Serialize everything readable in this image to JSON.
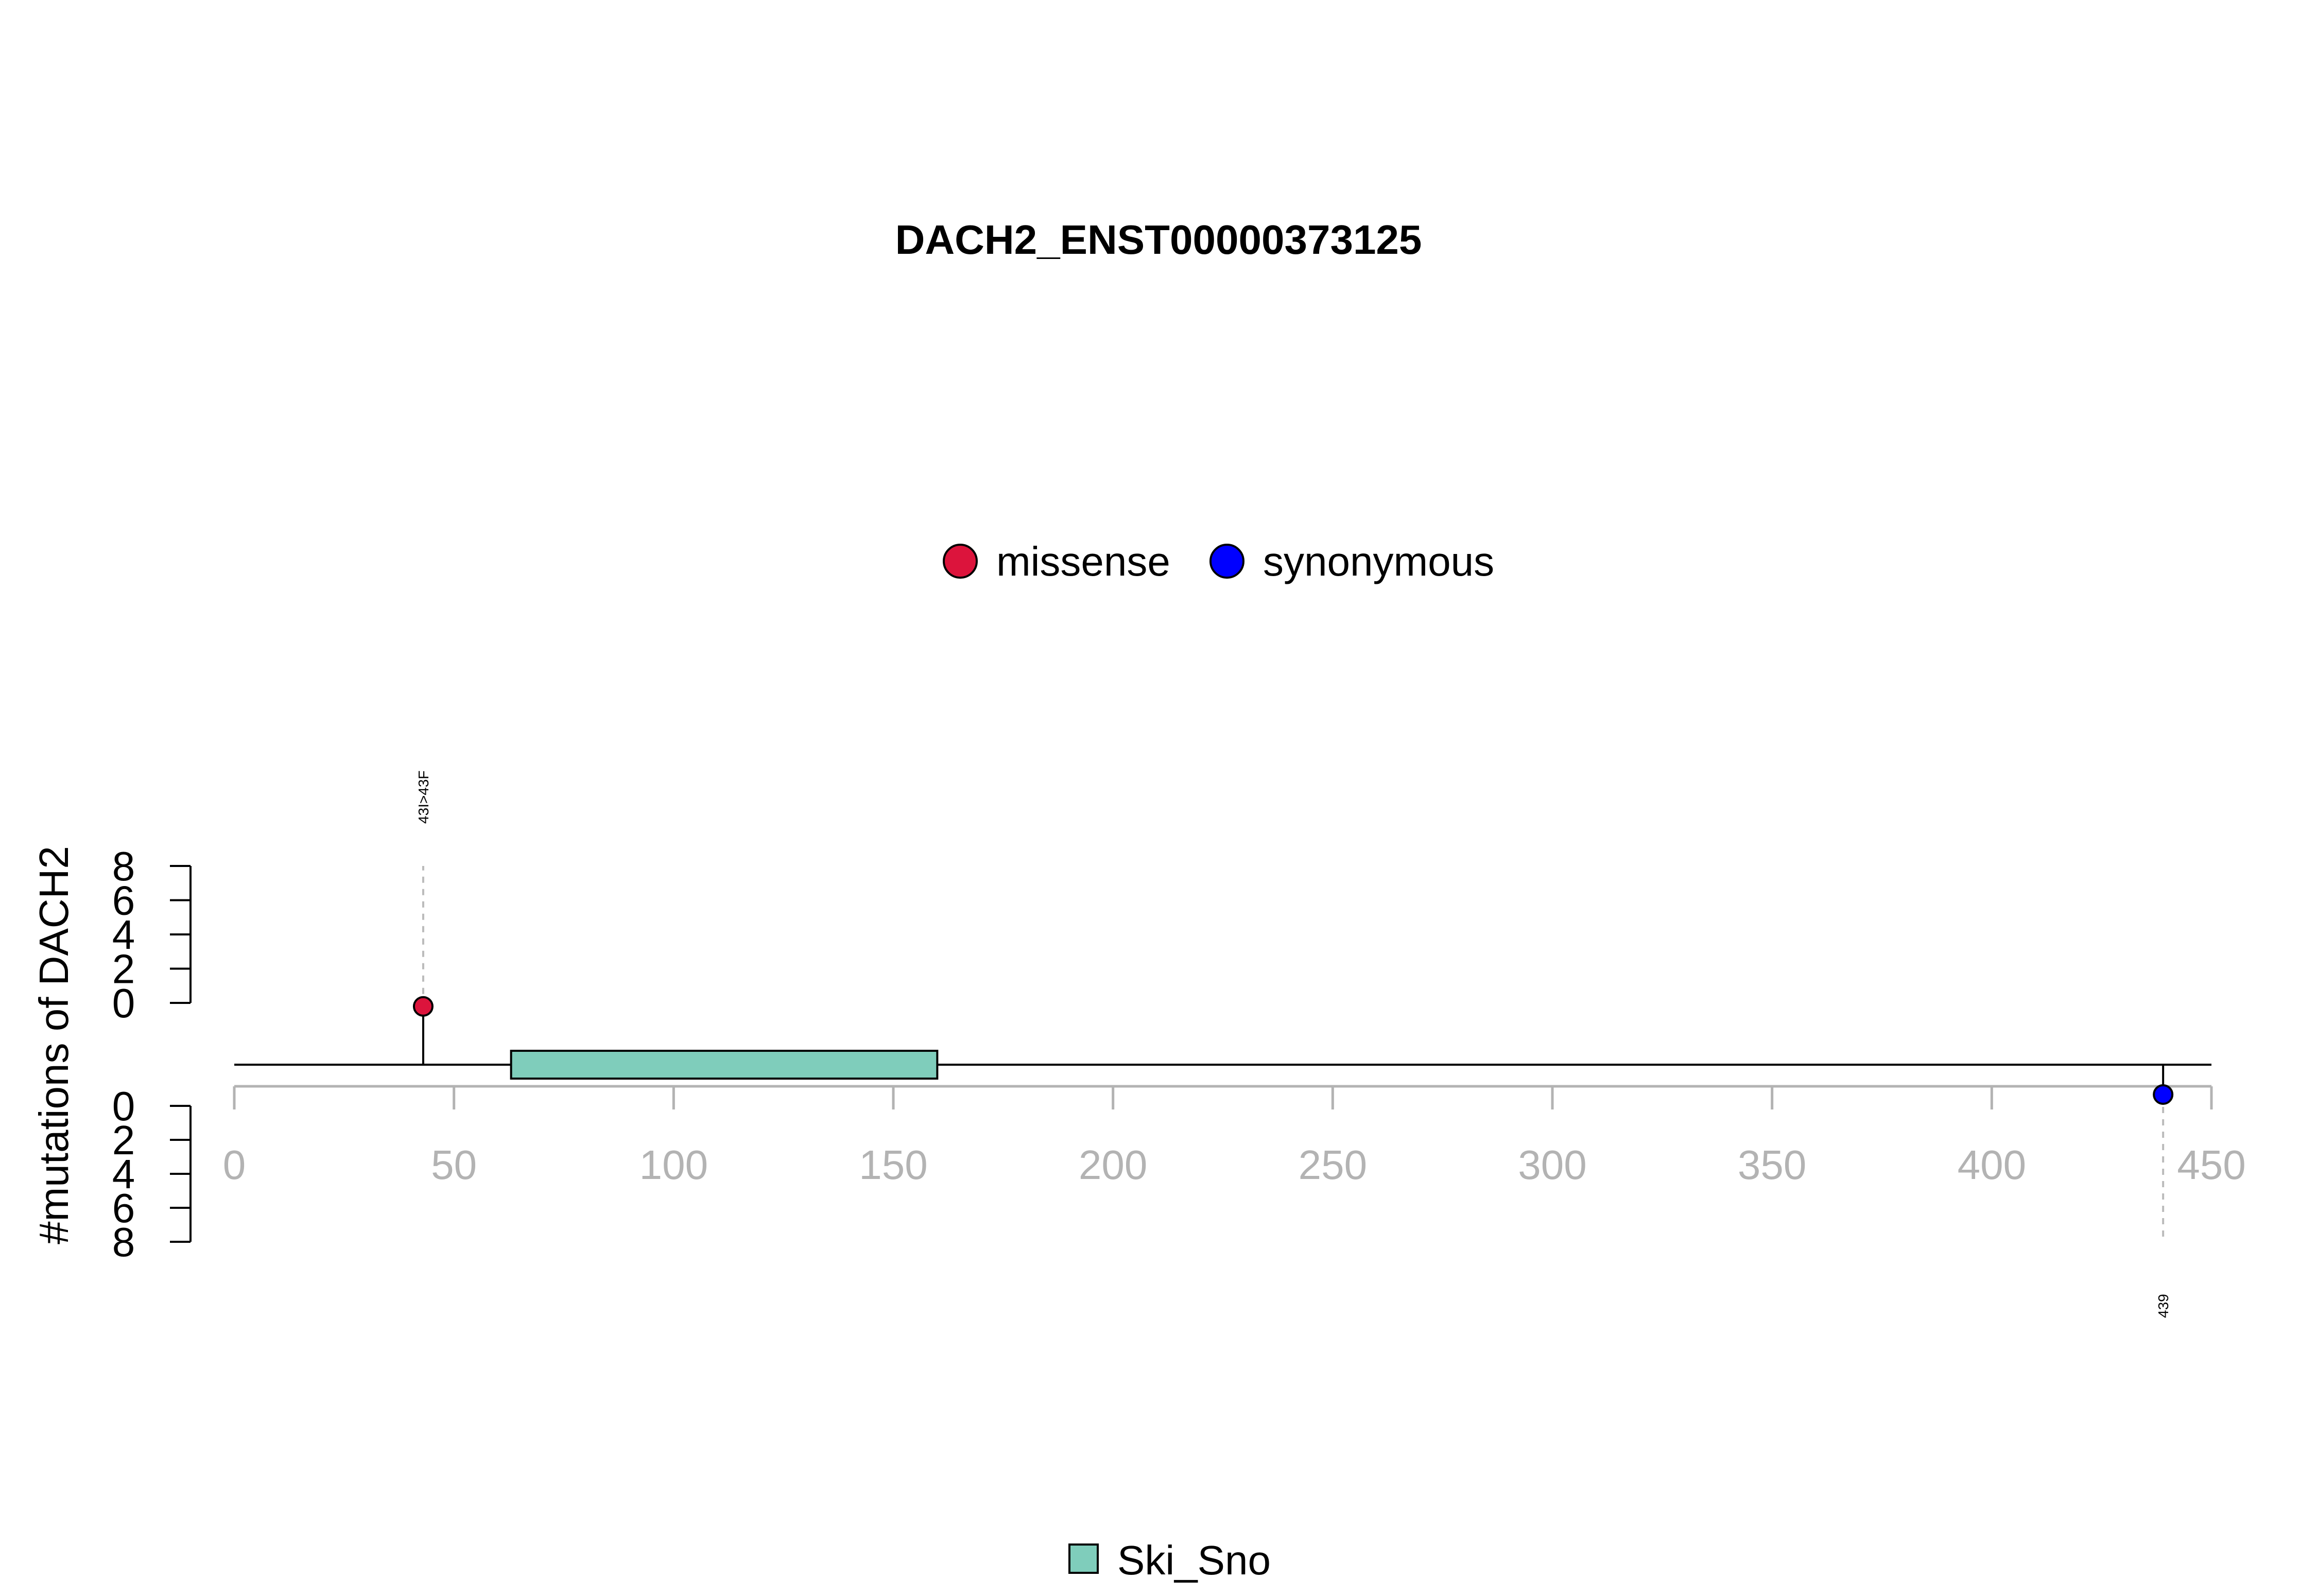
{
  "chart_data": {
    "type": "lollipop",
    "title": "DACH2_ENST00000373125",
    "ylabel": "#mutations of DACH2",
    "xlim": [
      0,
      450
    ],
    "xticks": [
      "0",
      "50",
      "100",
      "150",
      "200",
      "250",
      "300",
      "350",
      "400",
      "450"
    ],
    "upper_yticks": [
      "8",
      "6",
      "4",
      "2",
      "0"
    ],
    "lower_yticks": [
      "0",
      "2",
      "4",
      "6",
      "8"
    ],
    "ylim": [
      0,
      8
    ],
    "protein_length": 450,
    "mutation_legend": [
      {
        "label": "missense",
        "color": "#DC143C"
      },
      {
        "label": "synonymous",
        "color": "#0000FF"
      }
    ],
    "mutations": [
      {
        "position": 43,
        "count": 1,
        "type": "missense",
        "track": "upper",
        "label": "43I>43F",
        "color": "#DC143C"
      },
      {
        "position": 439,
        "count": 1,
        "type": "synonymous",
        "track": "lower",
        "label": "439",
        "color": "#0000FF"
      }
    ],
    "domains": [
      {
        "name": "Ski_Sno",
        "start": 63,
        "end": 160,
        "color": "#7FCDBB"
      }
    ],
    "domain_legend": [
      {
        "label": "Ski_Sno",
        "color": "#7FCDBB"
      }
    ]
  }
}
